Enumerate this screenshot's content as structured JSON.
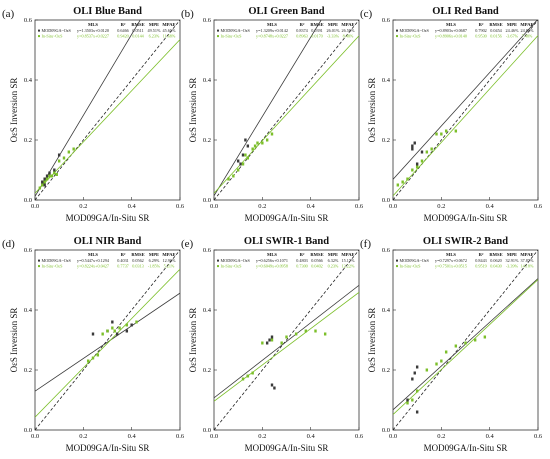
{
  "colors": {
    "modis": "#3a3a3a",
    "insitu": "#7cbf2a",
    "one_to_one": "#222222",
    "frame": "#333333"
  },
  "chart_data": [
    {
      "type": "scatter",
      "panel_label": "(a)",
      "title": "OLI Blue Band",
      "xlabel": "MOD09GA/In-Situ SR",
      "ylabel": "OεS Inversion SR",
      "xlim": [
        0,
        0.6
      ],
      "ylim": [
        0,
        0.6
      ],
      "xticks": [
        "0.0",
        "0.2",
        "0.4",
        "0.6"
      ],
      "yticks": [
        "0.0",
        "0.2",
        "0.4",
        "0.6"
      ],
      "stats_header": [
        "MLS",
        "R²",
        "RMSE",
        "MPE",
        "MPAE"
      ],
      "series": [
        {
          "name": "MOD09GA~OεS",
          "mls": "y=1.3503x+0.0120",
          "r2": "0.6466",
          "rmse": "0.0511",
          "mpe": "49.51%",
          "mpae": "45.65%",
          "slope": 1.3503,
          "intercept": 0.012,
          "points": [
            [
              0.03,
              0.06
            ],
            [
              0.04,
              0.07
            ],
            [
              0.05,
              0.08
            ],
            [
              0.06,
              0.09
            ],
            [
              0.08,
              0.1
            ],
            [
              0.1,
              0.15
            ],
            [
              0.04,
              0.05
            ]
          ]
        },
        {
          "name": "In-Situ~OεS",
          "mls": "y=0.8537x+0.0227",
          "r2": "0.9420",
          "rmse": "0.0144",
          "mpe": "6.23%",
          "mpae": "11.68%",
          "slope": 0.8537,
          "intercept": 0.0227,
          "points": [
            [
              0.02,
              0.04
            ],
            [
              0.03,
              0.05
            ],
            [
              0.04,
              0.06
            ],
            [
              0.05,
              0.07
            ],
            [
              0.06,
              0.08
            ],
            [
              0.08,
              0.09
            ],
            [
              0.1,
              0.13
            ],
            [
              0.12,
              0.14
            ],
            [
              0.14,
              0.16
            ],
            [
              0.16,
              0.17
            ],
            [
              0.07,
              0.08
            ],
            [
              0.09,
              0.085
            ]
          ]
        }
      ]
    },
    {
      "type": "scatter",
      "panel_label": "(b)",
      "title": "OLI Green Band",
      "xlabel": "MOD09GA/In-Situ SR",
      "ylabel": "OεS Inversion SR",
      "xlim": [
        0,
        0.6
      ],
      "ylim": [
        0,
        0.6
      ],
      "xticks": [
        "0.0",
        "0.2",
        "0.4",
        "0.6"
      ],
      "yticks": [
        "0.0",
        "0.2",
        "0.4",
        "0.6"
      ],
      "stats_header": [
        "MLS",
        "R²",
        "RMSE",
        "MPE",
        "MPAE"
      ],
      "series": [
        {
          "name": "MOD09GA~OεS",
          "mls": "y=1.3209x+0.0142",
          "r2": "0.8374",
          "rmse": "0.0391",
          "mpe": "26.01%",
          "mpae": "26.59%",
          "slope": 1.3209,
          "intercept": 0.0142,
          "points": [
            [
              0.1,
              0.13
            ],
            [
              0.12,
              0.15
            ],
            [
              0.13,
              0.2
            ],
            [
              0.14,
              0.18
            ],
            [
              0.11,
              0.12
            ]
          ]
        },
        {
          "name": "In-Situ~OεS",
          "mls": "y=0.8748x+0.0227",
          "r2": "0.8963",
          "rmse": "0.0170",
          "mpe": "-3.33%",
          "mpae": "8.48%",
          "slope": 0.8748,
          "intercept": 0.0227,
          "points": [
            [
              0.06,
              0.07
            ],
            [
              0.08,
              0.08
            ],
            [
              0.1,
              0.1
            ],
            [
              0.12,
              0.12
            ],
            [
              0.14,
              0.14
            ],
            [
              0.16,
              0.17
            ],
            [
              0.18,
              0.19
            ],
            [
              0.2,
              0.19
            ],
            [
              0.22,
              0.2
            ],
            [
              0.24,
              0.22
            ],
            [
              0.13,
              0.15
            ],
            [
              0.17,
              0.18
            ]
          ]
        }
      ]
    },
    {
      "type": "scatter",
      "panel_label": "(c)",
      "title": "OLI Red Band",
      "xlabel": "MOD09GA/In-Situ SR",
      "ylabel": "OεS Inversion SR",
      "xlim": [
        0,
        0.6
      ],
      "ylim": [
        0,
        0.6
      ],
      "xticks": [
        "0.0",
        "0.2",
        "0.4",
        "0.6"
      ],
      "yticks": [
        "0.0",
        "0.2",
        "0.4",
        "0.6"
      ],
      "stats_header": [
        "MLS",
        "R²",
        "RMSE",
        "MPE",
        "MPAE"
      ],
      "series": [
        {
          "name": "MOD09GA~OεS",
          "mls": "y=0.8903x+0.0687",
          "r2": "0.7902",
          "rmse": "0.0454",
          "mpe": "24.46%",
          "mpae": "24.89%",
          "slope": 0.8903,
          "intercept": 0.0687,
          "points": [
            [
              0.08,
              0.17
            ],
            [
              0.08,
              0.18
            ],
            [
              0.09,
              0.19
            ],
            [
              0.1,
              0.12
            ],
            [
              0.12,
              0.16
            ]
          ]
        },
        {
          "name": "In-Situ~OεS",
          "mls": "y=0.8906x+0.0140",
          "r2": "0.9530",
          "rmse": "0.0156",
          "mpe": "-3.67%",
          "mpae": "7.48%",
          "slope": 0.8906,
          "intercept": 0.014,
          "points": [
            [
              0.02,
              0.05
            ],
            [
              0.04,
              0.06
            ],
            [
              0.06,
              0.07
            ],
            [
              0.08,
              0.1
            ],
            [
              0.1,
              0.11
            ],
            [
              0.12,
              0.13
            ],
            [
              0.16,
              0.17
            ],
            [
              0.18,
              0.22
            ],
            [
              0.22,
              0.23
            ],
            [
              0.26,
              0.23
            ],
            [
              0.14,
              0.16
            ],
            [
              0.2,
              0.22
            ]
          ]
        }
      ]
    },
    {
      "type": "scatter",
      "panel_label": "(d)",
      "title": "OLI NIR Band",
      "xlabel": "MOD09GA/In-Situ SR",
      "ylabel": "OεS Inversion SR",
      "xlim": [
        0,
        0.6
      ],
      "ylim": [
        0,
        0.6
      ],
      "xticks": [
        "0.0",
        "0.2",
        "0.4",
        "0.6"
      ],
      "yticks": [
        "0.0",
        "0.2",
        "0.4",
        "0.6"
      ],
      "stats_header": [
        "MLS",
        "R²",
        "RMSE",
        "MPE",
        "MPAE"
      ],
      "series": [
        {
          "name": "MOD09GA~OεS",
          "mls": "y=0.5447x+0.1294",
          "r2": "0.4031",
          "rmse": "0.0562",
          "mpe": "6.29%",
          "mpae": "12.90%",
          "slope": 0.5447,
          "intercept": 0.1294,
          "points": [
            [
              0.24,
              0.32
            ],
            [
              0.32,
              0.36
            ],
            [
              0.34,
              0.32
            ],
            [
              0.38,
              0.33
            ],
            [
              0.4,
              0.35
            ],
            [
              0.3,
              0.33
            ]
          ]
        },
        {
          "name": "In-Situ~OεS",
          "mls": "y=0.8224x+0.0427",
          "r2": "0.7737",
          "rmse": "0.0313",
          "mpe": "-1.85%",
          "mpae": "5.21%",
          "slope": 0.8224,
          "intercept": 0.0427,
          "points": [
            [
              0.22,
              0.23
            ],
            [
              0.24,
              0.24
            ],
            [
              0.26,
              0.25
            ],
            [
              0.28,
              0.32
            ],
            [
              0.3,
              0.33
            ],
            [
              0.32,
              0.34
            ],
            [
              0.35,
              0.34
            ],
            [
              0.38,
              0.35
            ],
            [
              0.42,
              0.36
            ],
            [
              0.33,
              0.33
            ]
          ]
        }
      ]
    },
    {
      "type": "scatter",
      "panel_label": "(e)",
      "title": "OLI SWIR-1 Band",
      "xlabel": "MOD09GA/In-Situ SR",
      "ylabel": "OεS Inversion SR",
      "xlim": [
        0,
        0.6
      ],
      "ylim": [
        0,
        0.6
      ],
      "xticks": [
        "0.0",
        "0.2",
        "0.4",
        "0.6"
      ],
      "yticks": [
        "0.0",
        "0.2",
        "0.4",
        "0.6"
      ],
      "stats_header": [
        "MLS",
        "R²",
        "RMSE",
        "MPE",
        "MPAE"
      ],
      "series": [
        {
          "name": "MOD09GA~OεS",
          "mls": "y=0.6256x+0.1071",
          "r2": "0.4803",
          "rmse": "0.0566",
          "mpe": "6.32%",
          "mpae": "15.17%",
          "slope": 0.6256,
          "intercept": 0.1071,
          "points": [
            [
              0.22,
              0.29
            ],
            [
              0.23,
              0.3
            ],
            [
              0.24,
              0.31
            ],
            [
              0.24,
              0.15
            ],
            [
              0.25,
              0.14
            ],
            [
              0.14,
              0.18
            ]
          ]
        },
        {
          "name": "In-Situ~OεS",
          "mls": "y=0.6049x+0.0958",
          "r2": "0.7300",
          "rmse": "0.0402",
          "mpe": "0.23%",
          "mpae": "12.22%",
          "slope": 0.6049,
          "intercept": 0.0958,
          "points": [
            [
              0.12,
              0.17
            ],
            [
              0.14,
              0.18
            ],
            [
              0.16,
              0.19
            ],
            [
              0.2,
              0.29
            ],
            [
              0.24,
              0.3
            ],
            [
              0.3,
              0.31
            ],
            [
              0.34,
              0.32
            ],
            [
              0.38,
              0.33
            ],
            [
              0.42,
              0.33
            ],
            [
              0.46,
              0.32
            ],
            [
              0.28,
              0.29
            ]
          ]
        }
      ]
    },
    {
      "type": "scatter",
      "panel_label": "(f)",
      "title": "OLI SWIR-2 Band",
      "xlabel": "MOD09GA/In-Situ SR",
      "ylabel": "OεS Inversion SR",
      "xlim": [
        0,
        0.6
      ],
      "ylim": [
        0,
        0.6
      ],
      "xticks": [
        "0.0",
        "0.2",
        "0.4",
        "0.6"
      ],
      "yticks": [
        "0.0",
        "0.2",
        "0.4",
        "0.6"
      ],
      "stats_header": [
        "MLS",
        "R²",
        "RMSE",
        "MPE",
        "MPAE"
      ],
      "series": [
        {
          "name": "MOD09GA~OεS",
          "mls": "y=0.7297x+0.0672",
          "r2": "0.8443",
          "rmse": "0.0620",
          "mpe": "32.91%",
          "mpae": "37.87%",
          "slope": 0.7297,
          "intercept": 0.0672,
          "points": [
            [
              0.08,
              0.17
            ],
            [
              0.09,
              0.19
            ],
            [
              0.1,
              0.21
            ],
            [
              0.1,
              0.06
            ],
            [
              0.06,
              0.1
            ]
          ]
        },
        {
          "name": "In-Situ~OεS",
          "mls": "y=0.7501x+0.0515",
          "r2": "0.9519",
          "rmse": "0.0430",
          "mpe": "-3.39%",
          "mpae": "14.18%",
          "slope": 0.7501,
          "intercept": 0.0515,
          "points": [
            [
              0.06,
              0.09
            ],
            [
              0.08,
              0.1
            ],
            [
              0.1,
              0.13
            ],
            [
              0.14,
              0.2
            ],
            [
              0.18,
              0.22
            ],
            [
              0.22,
              0.26
            ],
            [
              0.26,
              0.28
            ],
            [
              0.3,
              0.29
            ],
            [
              0.34,
              0.3
            ],
            [
              0.38,
              0.31
            ],
            [
              0.2,
              0.23
            ]
          ]
        }
      ]
    }
  ]
}
